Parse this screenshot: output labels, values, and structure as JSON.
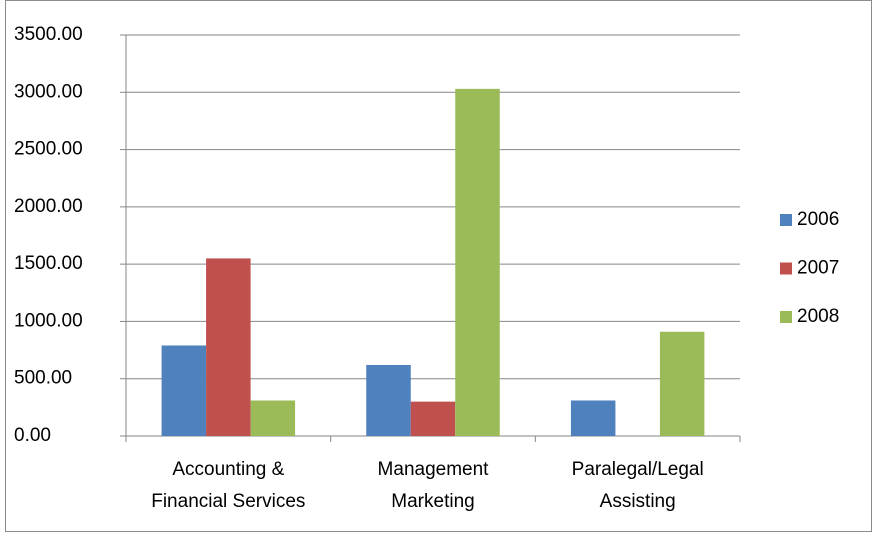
{
  "chart_data": {
    "type": "bar",
    "categories": [
      "Accounting & Financial Services",
      "Management Marketing",
      "Paralegal/Legal Assisting"
    ],
    "series": [
      {
        "name": "2006",
        "color": "#4f81bd",
        "values": [
          790,
          620,
          310
        ]
      },
      {
        "name": "2007",
        "color": "#c0504d",
        "values": [
          1550,
          300,
          null
        ]
      },
      {
        "name": "2008",
        "color": "#9bbb59",
        "values": [
          310,
          3030,
          910
        ]
      }
    ],
    "ylim": [
      0,
      3500
    ],
    "yticks": [
      {
        "value": 0,
        "label": "0.00"
      },
      {
        "value": 500,
        "label": "500.00"
      },
      {
        "value": 1000,
        "label": "1000.00"
      },
      {
        "value": 1500,
        "label": "1500.00"
      },
      {
        "value": 2000,
        "label": "2000.00"
      },
      {
        "value": 2500,
        "label": "2500.00"
      },
      {
        "value": 3000,
        "label": "3000.00"
      },
      {
        "value": 3500,
        "label": "3500.00"
      }
    ],
    "grid": true,
    "legend": "right"
  }
}
